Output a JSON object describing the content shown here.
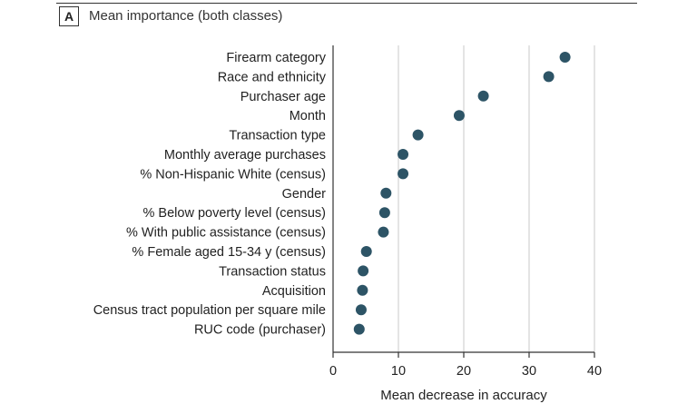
{
  "panel": {
    "badge": "A",
    "title": "Mean importance (both classes)"
  },
  "colors": {
    "dot": "#2d5466",
    "grid": "#c9c9c9",
    "axis": "#333333"
  },
  "chart_data": {
    "type": "scatter",
    "title": "Mean importance (both classes)",
    "xlabel": "Mean decrease in accuracy",
    "ylabel": "",
    "xlim": [
      0,
      40
    ],
    "xticks": [
      0,
      10,
      20,
      30,
      40
    ],
    "grid": true,
    "categories": [
      "Firearm category",
      "Race and ethnicity",
      "Purchaser age",
      "Month",
      "Transaction type",
      "Monthly average purchases",
      "% Non-Hispanic White (census)",
      "Gender",
      "% Below poverty level (census)",
      "% With public assistance (census)",
      "% Female aged 15-34 y (census)",
      "Transaction status",
      "Acquisition",
      "Census tract  population per square mile",
      "RUC code (purchaser)"
    ],
    "values": [
      35.5,
      33.0,
      23.0,
      19.3,
      13.0,
      10.7,
      10.7,
      8.1,
      7.9,
      7.7,
      5.1,
      4.6,
      4.5,
      4.3,
      4.0
    ]
  }
}
